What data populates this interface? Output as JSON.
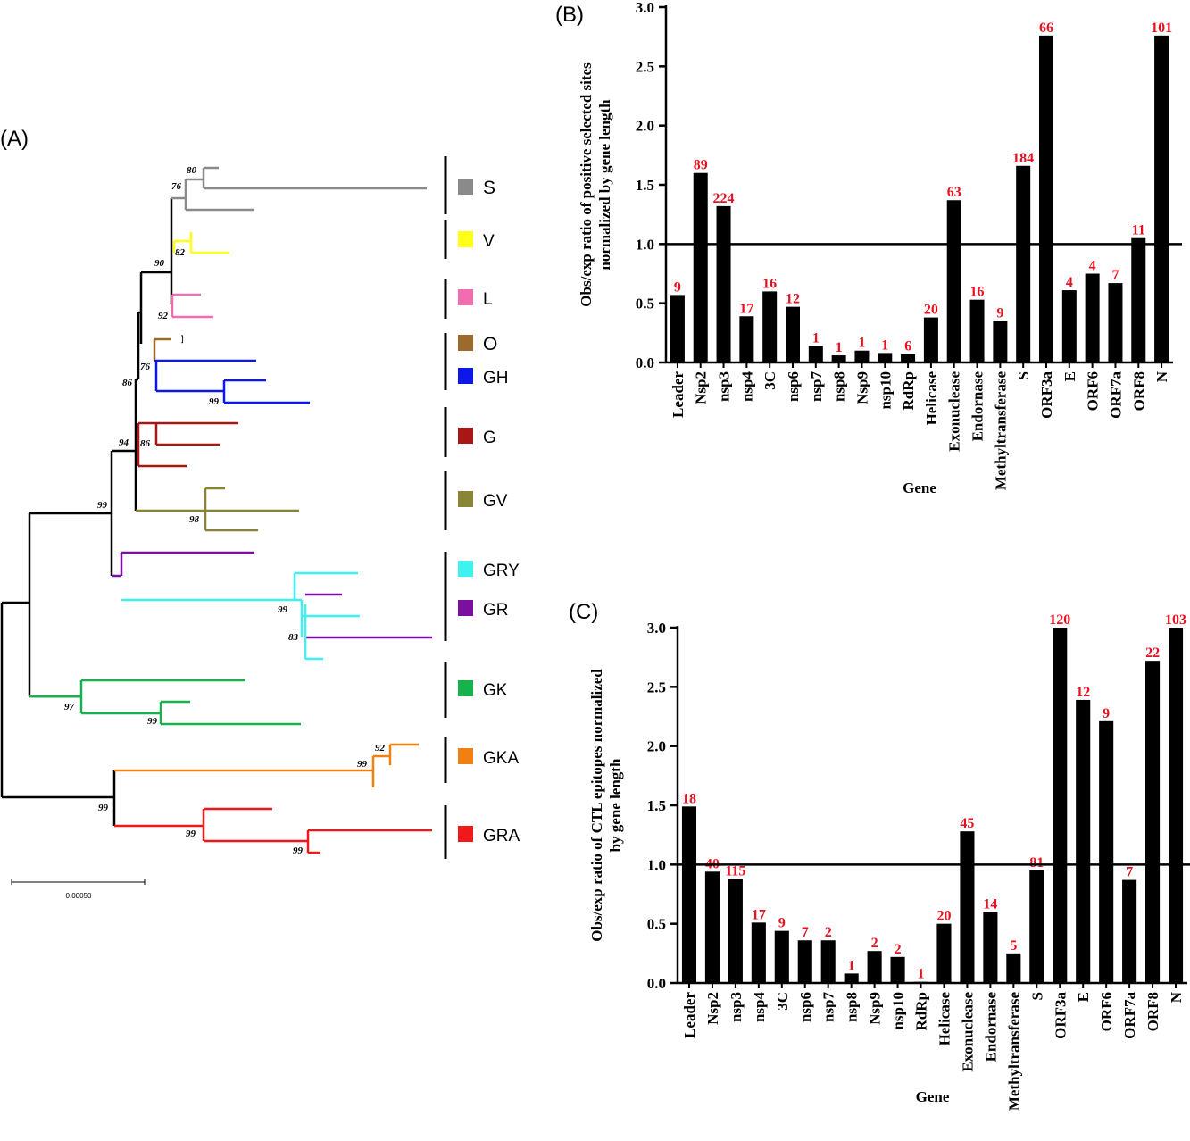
{
  "panels": {
    "a": "(A)",
    "b": "(B)",
    "c": "(C)"
  },
  "tree": {
    "clades": [
      {
        "name": "S",
        "color": "#8a8a8a"
      },
      {
        "name": "V",
        "color": "#ffff1a"
      },
      {
        "name": "L",
        "color": "#f06eb0"
      },
      {
        "name": "O",
        "color": "#9c6a2a"
      },
      {
        "name": "GH",
        "color": "#0a18ea"
      },
      {
        "name": "G",
        "color": "#a81616"
      },
      {
        "name": "GV",
        "color": "#8a8534"
      },
      {
        "name": "GRY",
        "color": "#3ff2f2"
      },
      {
        "name": "GR",
        "color": "#7a0fa0"
      },
      {
        "name": "GK",
        "color": "#14b44a"
      },
      {
        "name": "GKA",
        "color": "#f08010"
      },
      {
        "name": "GRA",
        "color": "#f01818"
      }
    ],
    "bootstrap": [
      "80",
      "76",
      "82",
      "90",
      "92",
      "76",
      "86",
      "99",
      "86",
      "94",
      "98",
      "99",
      "99",
      "83",
      "97",
      "99",
      "92",
      "99",
      "99",
      "99",
      "99"
    ],
    "scale_bar": "0.00050"
  },
  "chart_data": [
    {
      "type": "bar",
      "panel": "(B)",
      "title": "",
      "xlabel": "Gene",
      "ylabel_lines": [
        "Obs/exp ratio of positive selected sites",
        "normalized by gene length"
      ],
      "ylim": [
        0,
        3.0
      ],
      "yticks": [
        "0.0",
        "0.5",
        "1.0",
        "1.5",
        "2.0",
        "2.5",
        "3.0"
      ],
      "reference_line": 1.0,
      "categories": [
        "Leader",
        "Nsp2",
        "nsp3",
        "nsp4",
        "3C",
        "nsp6",
        "nsp7",
        "nsp8",
        "Nsp9",
        "nsp10",
        "RdRp",
        "Helicase",
        "Exonuclease",
        "Endornase",
        "Methyltransferase",
        "S",
        "ORF3a",
        "E",
        "ORF6",
        "ORF7a",
        "ORF8",
        "N"
      ],
      "values": [
        0.57,
        1.6,
        1.32,
        0.39,
        0.6,
        0.47,
        0.14,
        0.06,
        0.1,
        0.08,
        0.07,
        0.38,
        1.37,
        0.53,
        0.35,
        1.66,
        2.76,
        0.61,
        0.75,
        0.67,
        1.05,
        2.76
      ],
      "data_labels": [
        "9",
        "89",
        "224",
        "17",
        "16",
        "12",
        "1",
        "1",
        "1",
        "1",
        "6",
        "20",
        "63",
        "16",
        "9",
        "184",
        "66",
        "4",
        "4",
        "7",
        "11",
        "101"
      ]
    },
    {
      "type": "bar",
      "panel": "(C)",
      "title": "",
      "xlabel": "Gene",
      "ylabel_lines": [
        "Obs/exp ratio of CTL epitopes normalized",
        "by gene length"
      ],
      "ylim": [
        0,
        3.0
      ],
      "yticks": [
        "0.0",
        "0.5",
        "1.0",
        "1.5",
        "2.0",
        "2.5",
        "3.0"
      ],
      "reference_line": 1.0,
      "categories": [
        "Leader",
        "Nsp2",
        "nsp3",
        "nsp4",
        "3C",
        "nsp6",
        "nsp7",
        "nsp8",
        "Nsp9",
        "nsp10",
        "RdRp",
        "Helicase",
        "Exonuclease",
        "Endornase",
        "Methyltransferase",
        "S",
        "ORF3a",
        "E",
        "ORF6",
        "ORF7a",
        "ORF8",
        "N"
      ],
      "values": [
        1.49,
        0.94,
        0.88,
        0.51,
        0.44,
        0.36,
        0.36,
        0.08,
        0.27,
        0.22,
        0.01,
        0.5,
        1.28,
        0.6,
        0.25,
        0.95,
        3.0,
        2.39,
        2.21,
        0.87,
        2.72,
        3.0
      ],
      "data_labels": [
        "18",
        "40",
        "115",
        "17",
        "9",
        "7",
        "2",
        "1",
        "2",
        "2",
        "1",
        "20",
        "45",
        "14",
        "5",
        "81",
        "120",
        "12",
        "9",
        "7",
        "22",
        "103"
      ]
    }
  ]
}
